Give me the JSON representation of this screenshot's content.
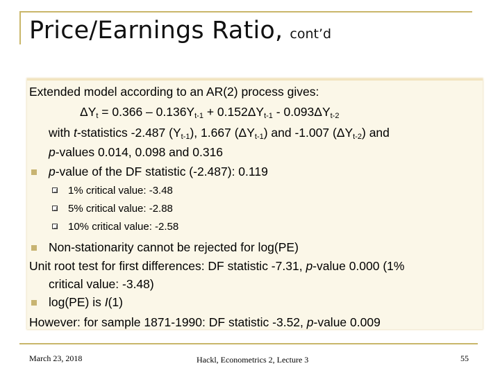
{
  "title": {
    "main": "Price/Earnings Ratio,",
    "sub": "cont’d"
  },
  "content": {
    "intro": "Extended model according to an AR(2) process gives:",
    "equation": {
      "lhs_a": "ΔY",
      "lhs_sub": "t",
      "mid_a": " = 0.366 – 0.136Y",
      "mid_sub1": "t-1",
      "mid_b": " + 0.152ΔY",
      "mid_sub2": "t-1",
      "mid_c": " - 0.093ΔY",
      "mid_sub3": "t-2"
    },
    "tstats": {
      "a": "with ",
      "t": "t",
      "b": "-statistics -2.487 (Y",
      "sub1": "t-1",
      "c": "), 1.667 (ΔY",
      "sub2": "t-1",
      "d": ") and -1.007 (ΔY",
      "sub3": "t-2",
      "e": ") and"
    },
    "pvalues": {
      "p": "p",
      "text": "-values 0.014, 0.098 and 0.316"
    },
    "df_pvalue": {
      "p": "p",
      "text": "-value of the DF statistic (-2.487): 0.119"
    },
    "critical_values": [
      "1% critical value: -3.48",
      "5% critical value: -2.88",
      "10% critical value: -2.58"
    ],
    "nonstationarity": "Non-stationarity cannot be rejected for log(PE)",
    "unit_root": {
      "a": "Unit root test for first differences: DF statistic -7.31, ",
      "p": "p",
      "b": "-value 0.000 (1%"
    },
    "unit_root_cont": "critical value: -3.48)",
    "integration": {
      "a": "log(PE) is ",
      "i": "I",
      "b": "(1)"
    },
    "however": {
      "a": "However: for sample 1871-1990: DF statistic -3.52, ",
      "p": "p",
      "b": "-value 0.009"
    }
  },
  "footer": {
    "date": "March 23, 2018",
    "center": "Hackl, Econometrics 2, Lecture 3",
    "page": "55"
  },
  "colors": {
    "accent": "#c9b66a",
    "content_bg": "#fbf7e8"
  }
}
